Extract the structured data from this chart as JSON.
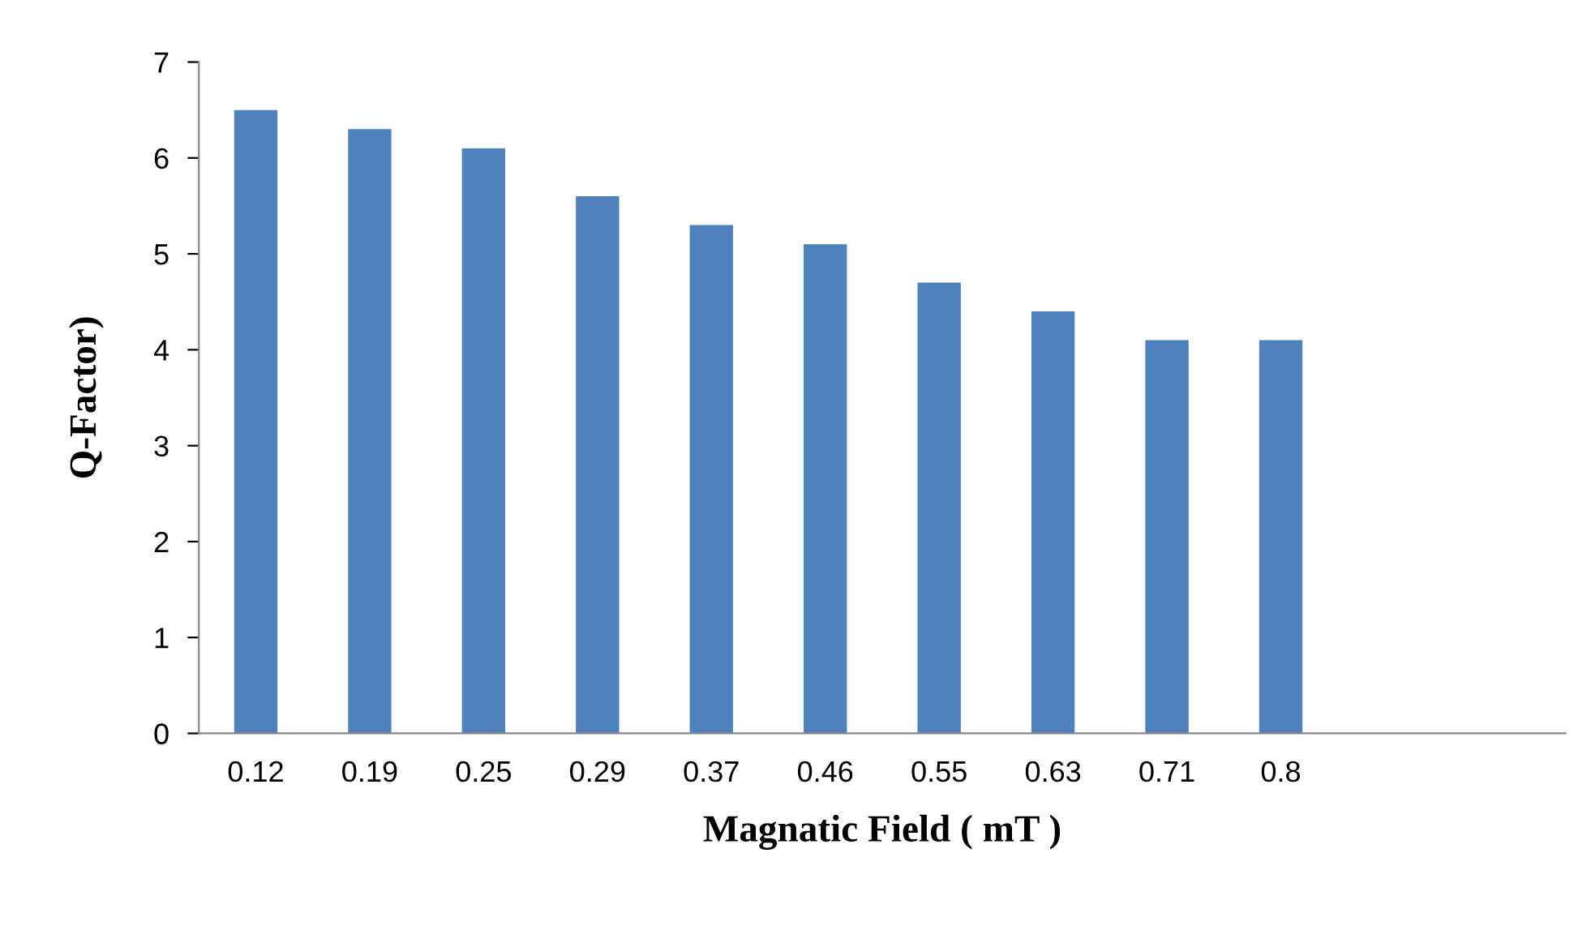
{
  "chart_data": {
    "type": "bar",
    "xlabel": "Magnatic Field ( mT )",
    "ylabel": "Q-Factor)",
    "categories": [
      "0.12",
      "0.19",
      "0.25",
      "0.29",
      "0.37",
      "0.46",
      "0.55",
      "0.63",
      "0.71",
      "0.8",
      null,
      null
    ],
    "values": [
      6.5,
      6.3,
      6.1,
      5.6,
      5.3,
      5.1,
      4.7,
      4.4,
      4.1,
      4.1,
      null,
      null
    ],
    "color": "#4f81bd",
    "ylim": [
      0,
      7
    ],
    "yticks": [
      0,
      1,
      2,
      3,
      4,
      5,
      6,
      7
    ],
    "grid": false,
    "legend": false
  }
}
